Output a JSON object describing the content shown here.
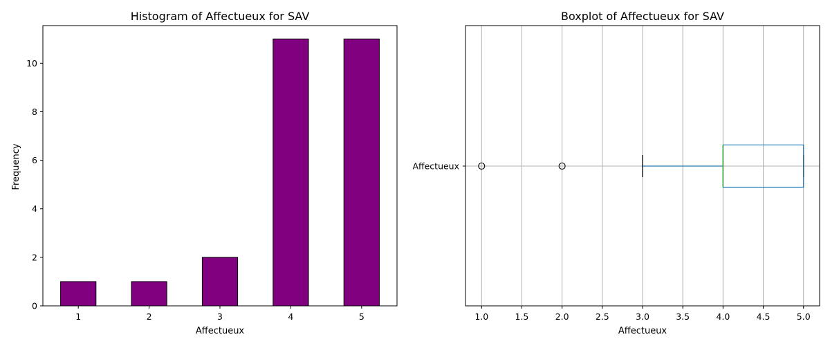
{
  "chart_data": [
    {
      "type": "bar",
      "title": "Histogram of Affectueux for SAV",
      "xlabel": "Affectueux",
      "ylabel": "Frequency",
      "categories": [
        "1",
        "2",
        "3",
        "4",
        "5"
      ],
      "values": [
        1,
        1,
        2,
        11,
        11
      ],
      "ylim": [
        0,
        11.55
      ],
      "yticks": [
        0,
        2,
        4,
        6,
        8,
        10
      ],
      "bar_color": "#800080",
      "edge_color": "#000000",
      "grid": false
    },
    {
      "type": "boxplot",
      "orientation": "horizontal",
      "title": "Boxplot of Affectueux for SAV",
      "xlabel": "Affectueux",
      "category": "Affectueux",
      "whisker_low": 3,
      "q1": 4,
      "median": 4,
      "q3": 5,
      "whisker_high": 5,
      "outliers": [
        1,
        2
      ],
      "xlim": [
        0.8,
        5.2
      ],
      "xticks": [
        "1.0",
        "1.5",
        "2.0",
        "2.5",
        "3.0",
        "3.5",
        "4.0",
        "4.5",
        "5.0"
      ],
      "box_color": "#1f77b4",
      "median_color": "#2ca02c",
      "grid": true
    }
  ]
}
